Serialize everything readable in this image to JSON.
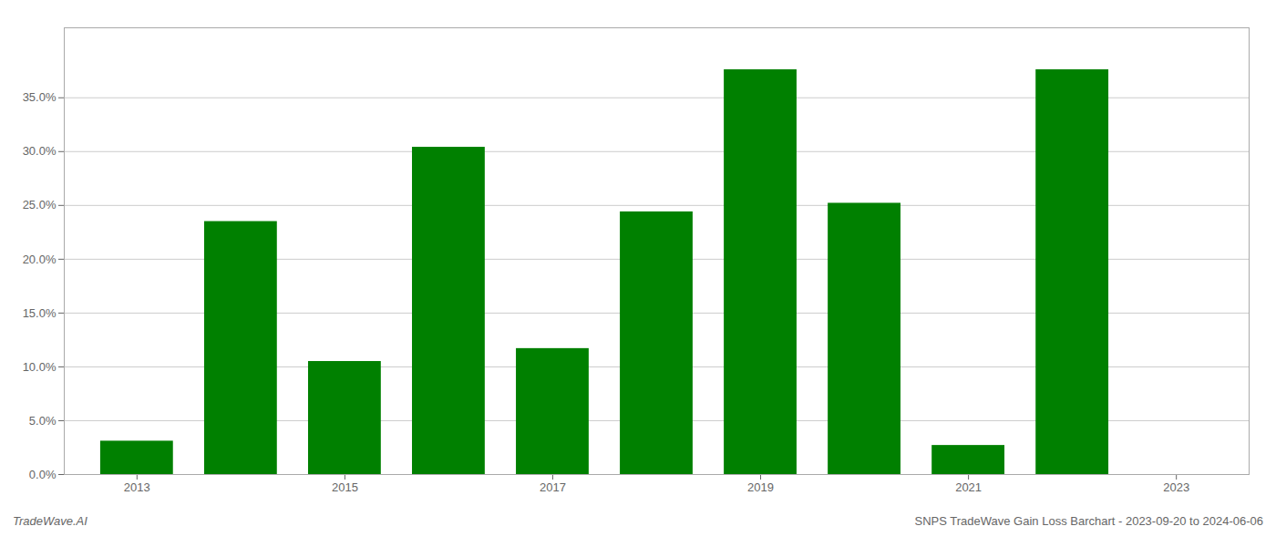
{
  "chart_data": {
    "type": "bar",
    "x": [
      2013,
      2014,
      2015,
      2016,
      2017,
      2018,
      2019,
      2020,
      2021,
      2022,
      2023
    ],
    "values": [
      0.031,
      0.235,
      0.105,
      0.304,
      0.117,
      0.244,
      0.376,
      0.252,
      0.027,
      0.376,
      null
    ],
    "color": "#008000",
    "xlim": [
      2012.3,
      2023.7
    ],
    "ylim": [
      0.0,
      0.415
    ],
    "xticks": [
      2013,
      2015,
      2017,
      2019,
      2021,
      2023
    ],
    "yticks": [
      {
        "value": 0.0,
        "label": "0.0%"
      },
      {
        "value": 0.05,
        "label": "5.0%"
      },
      {
        "value": 0.1,
        "label": "10.0%"
      },
      {
        "value": 0.15,
        "label": "15.0%"
      },
      {
        "value": 0.2,
        "label": "20.0%"
      },
      {
        "value": 0.25,
        "label": "25.0%"
      },
      {
        "value": 0.3,
        "label": "30.0%"
      },
      {
        "value": 0.35,
        "label": "35.0%"
      }
    ],
    "grid": true,
    "annotations": [
      "TradeWave.AI",
      "SNPS TradeWave Gain Loss Barchart - 2023-09-20 to 2024-06-06"
    ]
  }
}
